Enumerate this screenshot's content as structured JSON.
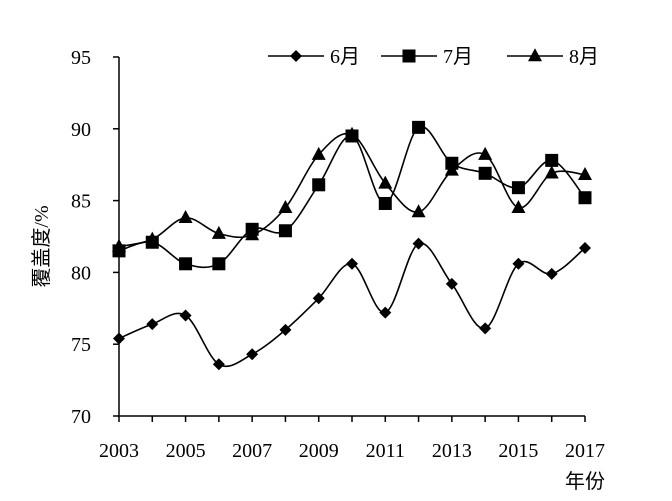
{
  "chart_data": {
    "type": "line",
    "x": [
      2003,
      2004,
      2005,
      2006,
      2007,
      2008,
      2009,
      2010,
      2011,
      2012,
      2013,
      2014,
      2015,
      2016,
      2017
    ],
    "x_tick_labels": [
      "2003",
      "2005",
      "2007",
      "2009",
      "2011",
      "2013",
      "2015",
      "2017"
    ],
    "x_tick_values": [
      2003,
      2005,
      2007,
      2009,
      2011,
      2013,
      2015,
      2017
    ],
    "y_ticks": [
      70,
      75,
      80,
      85,
      90,
      95
    ],
    "y_tick_labels": [
      "70",
      "75",
      "80",
      "85",
      "90",
      "95"
    ],
    "xlim": [
      2003,
      2017
    ],
    "ylim": [
      70,
      95
    ],
    "xlabel": "年份",
    "ylabel": "覆盖度/%",
    "grid": false,
    "legend_position": "top-right",
    "line_color": "#000000",
    "smooth": true,
    "series": [
      {
        "name": "6月",
        "marker": "diamond",
        "values": [
          75.4,
          76.4,
          77.0,
          73.6,
          74.3,
          76.0,
          78.2,
          80.6,
          77.2,
          82.0,
          79.2,
          76.1,
          80.6,
          79.9,
          81.7
        ]
      },
      {
        "name": "7月",
        "marker": "square",
        "values": [
          81.5,
          82.1,
          80.6,
          80.6,
          83.0,
          82.9,
          86.1,
          89.5,
          84.8,
          90.1,
          87.6,
          86.9,
          85.9,
          87.8,
          85.2
        ]
      },
      {
        "name": "8月",
        "marker": "triangle",
        "values": [
          81.8,
          82.3,
          83.8,
          82.7,
          82.6,
          84.5,
          88.2,
          89.6,
          86.2,
          84.2,
          87.1,
          88.2,
          84.5,
          86.9,
          86.8
        ]
      }
    ]
  }
}
